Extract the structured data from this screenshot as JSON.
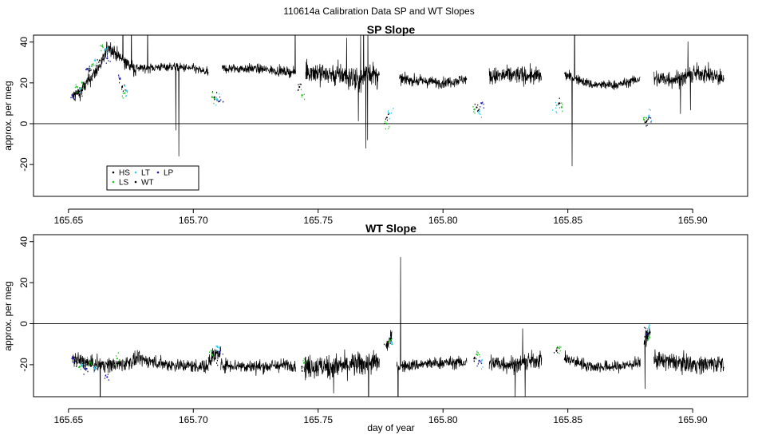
{
  "figure_title": "110614a   Calibration Data SP and WT Slopes",
  "colors": {
    "HS": "#000000",
    "LS": "#22c422",
    "LT": "#33ccee",
    "WT": "#000000",
    "LP": "#1a1aa0",
    "axis": "#000000"
  },
  "chart_data": [
    {
      "type": "line",
      "title": "SP Slope",
      "xlabel": "",
      "ylabel": "approx. per meg",
      "xlim": [
        165.636,
        165.922
      ],
      "ylim": [
        -35.6,
        43.4
      ],
      "x_ticks": [
        165.65,
        165.7,
        165.75,
        165.8,
        165.85,
        165.9
      ],
      "x_tick_labels": [
        "165.65",
        "165.70",
        "165.75",
        "165.80",
        "165.85",
        "165.90"
      ],
      "y_ticks": [
        -20,
        0,
        20,
        40
      ],
      "y_tick_labels": [
        "-20",
        "0",
        "20",
        "40"
      ],
      "reference_line": 0,
      "legend": {
        "placement": "bottom-left",
        "entries": [
          "HS",
          "LT",
          "LP",
          "LS",
          "WT"
        ]
      },
      "series": [
        {
          "name": "WT",
          "style": "line",
          "segments": [
            {
              "x": [
                165.6515,
                165.655,
                165.66,
                165.6635,
                165.666,
                165.67,
                165.677
              ],
              "y": [
                13,
                16,
                24,
                30,
                38,
                33,
                26
              ],
              "noise": 2.5
            },
            {
              "x": [
                165.677,
                165.69,
                165.7,
                165.706
              ],
              "y": [
                27,
                28,
                27,
                25
              ],
              "noise": 1.5
            },
            {
              "x": [
                165.7115,
                165.725,
                165.741
              ],
              "y": [
                27,
                27,
                25
              ],
              "noise": 1.6
            },
            {
              "x": [
                165.745,
                165.756,
                165.76,
                165.7665,
                165.77,
                165.7745
              ],
              "y": [
                26,
                24,
                24,
                20,
                26,
                22
              ],
              "noise": 4
            },
            {
              "x": [
                165.7825,
                165.79,
                165.8,
                165.8095
              ],
              "y": [
                22,
                21,
                20,
                22
              ],
              "noise": 1.8
            },
            {
              "x": [
                165.8185,
                165.83,
                165.8395
              ],
              "y": [
                23,
                24,
                23
              ],
              "noise": 3
            },
            {
              "x": [
                165.8485,
                165.86,
                165.87,
                165.879
              ],
              "y": [
                24,
                19,
                19,
                22
              ],
              "noise": 1.6
            },
            {
              "x": [
                165.8845,
                165.895,
                165.903,
                165.9125
              ],
              "y": [
                22,
                22,
                25,
                22
              ],
              "noise": 3
            }
          ]
        },
        {
          "name": "HS",
          "style": "points",
          "x": [
            165.6525,
            165.6545,
            165.6585,
            165.6625,
            165.6715,
            165.7085,
            165.7425,
            165.7775,
            165.8135,
            165.8465,
            165.8815
          ],
          "y": [
            15,
            14,
            26,
            31,
            18,
            13,
            18,
            3,
            8,
            10,
            1
          ]
        },
        {
          "name": "LS",
          "style": "points",
          "x": [
            165.6535,
            165.6555,
            165.6595,
            165.6635,
            165.6725,
            165.7075,
            165.7435,
            165.7775,
            165.8125,
            165.8475,
            165.8805
          ],
          "y": [
            18,
            20,
            29,
            38,
            15,
            13,
            14,
            0,
            7,
            8,
            2
          ]
        },
        {
          "name": "LT",
          "style": "points",
          "x": [
            165.6545,
            165.6605,
            165.6645,
            165.6735,
            165.7095,
            165.7785,
            165.8145,
            165.8455,
            165.8825
          ],
          "y": [
            17,
            31,
            36,
            16,
            12,
            5,
            6,
            9,
            4
          ]
        },
        {
          "name": "LP",
          "style": "points",
          "x": [
            165.6515,
            165.6575,
            165.6655,
            165.6705,
            165.7105,
            165.8155,
            165.8825
          ],
          "y": [
            14,
            27,
            32,
            22,
            11,
            10,
            3
          ]
        }
      ]
    },
    {
      "type": "line",
      "title": "WT Slope",
      "xlabel": "day of year",
      "ylabel": "approx. per meg",
      "xlim": [
        165.636,
        165.922
      ],
      "ylim": [
        -35.6,
        43.4
      ],
      "x_ticks": [
        165.65,
        165.7,
        165.75,
        165.8,
        165.85,
        165.9
      ],
      "x_tick_labels": [
        "165.65",
        "165.70",
        "165.75",
        "165.80",
        "165.85",
        "165.90"
      ],
      "y_ticks": [
        -20,
        0,
        20,
        40
      ],
      "y_tick_labels": [
        "-20",
        "0",
        "20",
        "40"
      ],
      "reference_line": 0,
      "series": [
        {
          "name": "WT",
          "style": "line",
          "segments": [
            {
              "x": [
                165.6515,
                165.66,
                165.67,
                165.677
              ],
              "y": [
                -17,
                -20,
                -20,
                -18
              ],
              "noise": 2.5
            },
            {
              "x": [
                165.677,
                165.69,
                165.706
              ],
              "y": [
                -17,
                -20,
                -21
              ],
              "noise": 2.2
            },
            {
              "x": [
                165.706,
                165.711
              ],
              "y": [
                -17,
                -14
              ],
              "noise": 3
            },
            {
              "x": [
                165.711,
                165.725,
                165.741
              ],
              "y": [
                -20,
                -21,
                -20
              ],
              "noise": 2.2
            },
            {
              "x": [
                165.7445,
                165.756,
                165.765,
                165.7745
              ],
              "y": [
                -21,
                -21,
                -20,
                -19
              ],
              "noise": 4
            },
            {
              "x": [
                165.777,
                165.7795
              ],
              "y": [
                -12,
                -6
              ],
              "noise": 2
            },
            {
              "x": [
                165.7815,
                165.79,
                165.8,
                165.8095
              ],
              "y": [
                -21,
                -20,
                -19,
                -19
              ],
              "noise": 2
            },
            {
              "x": [
                165.8185,
                165.83,
                165.8395
              ],
              "y": [
                -19,
                -20,
                -17
              ],
              "noise": 3
            },
            {
              "x": [
                165.8485,
                165.86,
                165.87,
                165.879
              ],
              "y": [
                -17,
                -21,
                -21,
                -19
              ],
              "noise": 2
            },
            {
              "x": [
                165.8805,
                165.883
              ],
              "y": [
                -10,
                -3
              ],
              "noise": 2.5
            },
            {
              "x": [
                165.8845,
                165.895,
                165.903,
                165.9125
              ],
              "y": [
                -18,
                -19,
                -20,
                -19
              ],
              "noise": 3
            }
          ]
        },
        {
          "name": "HS",
          "style": "points",
          "x": [
            165.6525,
            165.6575,
            165.6635,
            165.7085,
            165.7435,
            165.7775,
            165.8125,
            165.8455,
            165.8815
          ],
          "y": [
            -18,
            -20,
            -19,
            -17,
            -21,
            -10,
            -17,
            -13,
            -4
          ]
        },
        {
          "name": "LS",
          "style": "points",
          "x": [
            165.6545,
            165.6585,
            165.6695,
            165.7075,
            165.7445,
            165.7785,
            165.8135,
            165.8465,
            165.8825
          ],
          "y": [
            -21,
            -19,
            -17,
            -15,
            -19,
            -8,
            -15,
            -12,
            -6
          ]
        },
        {
          "name": "LT",
          "style": "points",
          "x": [
            165.6555,
            165.6605,
            165.7095,
            165.7795,
            165.8155,
            165.8825
          ],
          "y": [
            -20,
            -22,
            -11,
            -9,
            -18,
            -2
          ]
        },
        {
          "name": "LP",
          "style": "points",
          "x": [
            165.6515,
            165.6565,
            165.6655,
            165.7105,
            165.8145,
            165.8815
          ],
          "y": [
            -17,
            -22,
            -26,
            -14,
            -18,
            -5
          ]
        }
      ]
    }
  ]
}
